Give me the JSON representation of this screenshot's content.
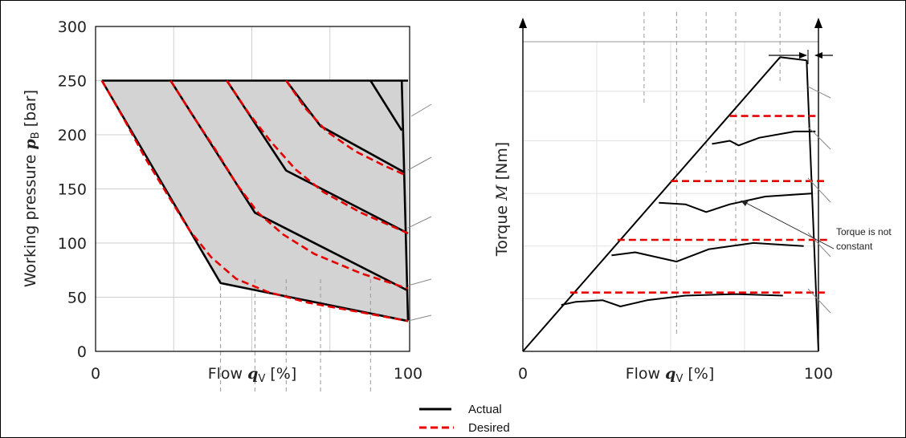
{
  "chart_data": [
    {
      "type": "line",
      "xlabel": "Flow q_V [%]",
      "ylabel": "Working pressure p_B [bar]",
      "xlabel_parts": {
        "pre": "Flow ",
        "sym": "q",
        "sub": "V",
        "post": " [%]"
      },
      "ylabel_parts": {
        "pre": "Working pressure ",
        "sym": "p",
        "sub": "B",
        "post": " [bar]"
      },
      "xlim": [
        0,
        100
      ],
      "ylim": [
        0,
        300
      ],
      "x_ticks": [
        "0",
        "100"
      ],
      "y_ticks": [
        "0",
        "50",
        "100",
        "150",
        "200",
        "250",
        "300"
      ],
      "grid": true,
      "shaded_region": [
        [
          2,
          250
        ],
        [
          100,
          250
        ],
        [
          100,
          28
        ],
        [
          40,
          63
        ],
        [
          2,
          250
        ]
      ],
      "series": [
        {
          "name": "Actual",
          "style": "solid",
          "color": "#000000",
          "curves": [
            [
              [
                2,
                250
              ],
              [
                40,
                63
              ],
              [
                100,
                28
              ]
            ],
            [
              [
                24,
                250
              ],
              [
                51,
                128
              ],
              [
                100,
                56
              ]
            ],
            [
              [
                42,
                250
              ],
              [
                61,
                167
              ],
              [
                100,
                109
              ]
            ],
            [
              [
                61,
                250
              ],
              [
                72,
                208
              ],
              [
                99,
                165
              ]
            ],
            [
              [
                88,
                250
              ],
              [
                98,
                204
              ]
            ],
            [
              [
                2,
                250
              ],
              [
                100,
                250
              ]
            ],
            [
              [
                98,
                250
              ],
              [
                100,
                28
              ]
            ]
          ]
        },
        {
          "name": "Desired",
          "style": "dashed",
          "color": "#e60000",
          "curves": [
            [
              [
                2,
                250
              ],
              [
                9,
                215
              ],
              [
                16,
                178
              ],
              [
                24,
                140
              ],
              [
                30,
                112
              ],
              [
                37,
                87
              ],
              [
                45,
                67
              ],
              [
                55,
                55
              ],
              [
                68,
                45
              ],
              [
                85,
                36
              ],
              [
                100,
                28
              ]
            ],
            [
              [
                24,
                250
              ],
              [
                31,
                218
              ],
              [
                38,
                188
              ],
              [
                45,
                155
              ],
              [
                52,
                128
              ],
              [
                60,
                108
              ],
              [
                70,
                90
              ],
              [
                85,
                72
              ],
              [
                100,
                58
              ]
            ],
            [
              [
                42,
                250
              ],
              [
                49,
                220
              ],
              [
                56,
                194
              ],
              [
                64,
                168
              ],
              [
                73,
                147
              ],
              [
                85,
                128
              ],
              [
                100,
                109
              ]
            ],
            [
              [
                61,
                250
              ],
              [
                67,
                225
              ],
              [
                74,
                203
              ],
              [
                83,
                185
              ],
              [
                92,
                172
              ],
              [
                99,
                163
              ]
            ]
          ]
        }
      ]
    },
    {
      "type": "line",
      "xlabel": "Flow q_V [%]",
      "ylabel": "Torque M [Nm]",
      "xlabel_parts": {
        "pre": "Flow ",
        "sym": "q",
        "sub": "V",
        "post": " [%]"
      },
      "ylabel_parts": {
        "pre": "Torque ",
        "sym": "M",
        "sub": "",
        "post": " [Nm]"
      },
      "xlim": [
        0,
        100
      ],
      "x_ticks": [
        "0",
        "100"
      ],
      "annotation": [
        "Torque is not",
        "constant"
      ],
      "series": [
        {
          "name": "Actual",
          "style": "solid",
          "color": "#000000",
          "curves": [
            [
              [
                0,
                0
              ],
              [
                87,
                95
              ]
            ],
            [
              [
                87,
                95
              ],
              [
                96,
                94
              ]
            ],
            [
              [
                96,
                94
              ],
              [
                100,
                0
              ]
            ],
            [
              [
                13,
                15
              ],
              [
                18,
                16
              ],
              [
                27,
                16.5
              ],
              [
                33,
                14.5
              ],
              [
                42,
                16.5
              ],
              [
                55,
                18
              ],
              [
                72,
                18.5
              ],
              [
                88,
                18
              ]
            ],
            [
              [
                30,
                31
              ],
              [
                38,
                32
              ],
              [
                52,
                29
              ],
              [
                63,
                33
              ],
              [
                78,
                35
              ],
              [
                95,
                34
              ]
            ],
            [
              [
                46,
                48
              ],
              [
                55,
                47.5
              ],
              [
                62,
                45
              ],
              [
                70,
                47.5
              ],
              [
                82,
                50
              ],
              [
                98,
                51
              ]
            ],
            [
              [
                64,
                67
              ],
              [
                70,
                68
              ],
              [
                73,
                66.5
              ],
              [
                80,
                69
              ],
              [
                92,
                71
              ],
              [
                99,
                71
              ]
            ]
          ]
        },
        {
          "name": "Desired",
          "style": "dashed",
          "color": "#e60000",
          "curves": [
            [
              [
                16,
                19
              ],
              [
                103,
                19
              ]
            ],
            [
              [
                32,
                36
              ],
              [
                103,
                36
              ]
            ],
            [
              [
                50,
                55
              ],
              [
                103,
                55
              ]
            ],
            [
              [
                70,
                76
              ],
              [
                99,
                76
              ]
            ]
          ]
        }
      ]
    }
  ],
  "legend": {
    "actual_label": "Actual",
    "desired_label": "Desired",
    "actual_color": "#000000",
    "desired_color": "#e60000"
  }
}
